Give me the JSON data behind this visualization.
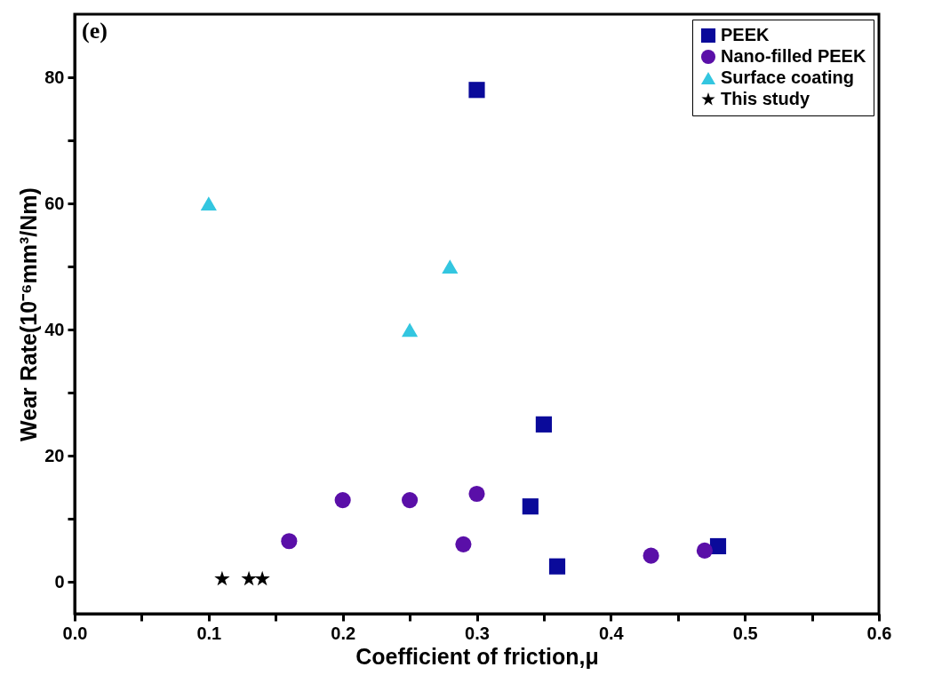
{
  "chart_data": {
    "type": "scatter",
    "xlabel": "Coefficient of friction,μ",
    "ylabel": "Wear Rate(10⁻⁶mm³/Nm)",
    "annotations": [
      "(e)"
    ],
    "xlim": [
      0,
      0.6
    ],
    "ylim": [
      -5,
      90
    ],
    "xticks": [
      {
        "value": 0,
        "label": "0.0"
      },
      {
        "value": 0.05,
        "label": null
      },
      0.1,
      {
        "value": 0.15,
        "label": null
      },
      0.2,
      {
        "value": 0.25,
        "label": null
      },
      0.3,
      {
        "value": 0.35,
        "label": null
      },
      0.4,
      {
        "value": 0.45,
        "label": null
      },
      0.5,
      {
        "value": 0.55,
        "label": null
      },
      0.6
    ],
    "yticks": [
      0,
      {
        "value": 10,
        "label": null
      },
      20,
      {
        "value": 30,
        "label": null
      },
      40,
      {
        "value": 50,
        "label": null
      },
      60,
      {
        "value": 70,
        "label": null
      },
      80
    ],
    "grid": false,
    "legend": "top right",
    "series": [
      {
        "name": "PEEK",
        "color": "#0a0a9a",
        "marker": "square",
        "x": [
          0.3,
          0.35,
          0.34,
          0.36,
          0.48
        ],
        "values": [
          78,
          25,
          12,
          2.5,
          5.7
        ]
      },
      {
        "name": "Nano-filled PEEK",
        "color": "#5a0fa8",
        "marker": "circle",
        "x": [
          0.2,
          0.25,
          0.3,
          0.16,
          0.29,
          0.43,
          0.47
        ],
        "values": [
          13,
          13,
          14,
          6.5,
          6,
          4.2,
          5
        ]
      },
      {
        "name": "Surface coating",
        "color": "#33c6e0",
        "marker": "triangle",
        "x": [
          0.1,
          0.28,
          0.25
        ],
        "values": [
          60,
          50,
          40
        ]
      },
      {
        "name": "This study",
        "color": "#000000",
        "marker": "star",
        "x": [
          0.11,
          0.13,
          0.14
        ],
        "values": [
          0.5,
          0.5,
          0.5
        ]
      }
    ]
  }
}
